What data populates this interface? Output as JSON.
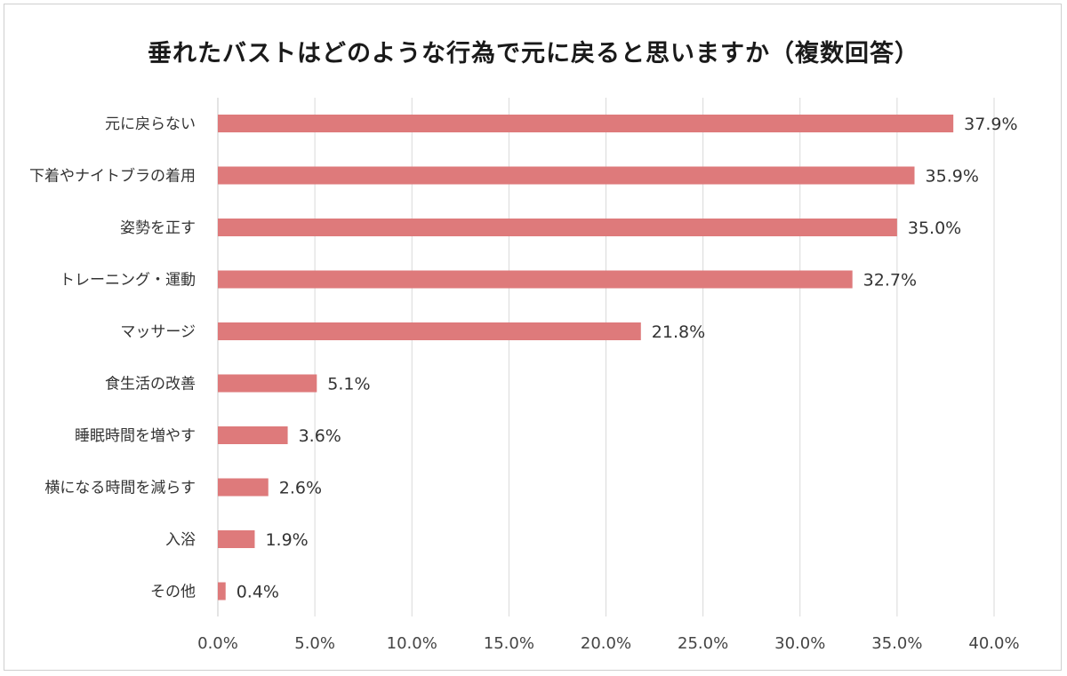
{
  "chart_data": {
    "type": "bar",
    "orientation": "horizontal",
    "title": "垂れたバストはどのような行為で元に戻ると思いますか（複数回答）",
    "categories": [
      "元に戻らない",
      "下着やナイトブラの着用",
      "姿勢を正す",
      "トレーニング・運動",
      "マッサージ",
      "食生活の改善",
      "睡眠時間を増やす",
      "横になる時間を減らす",
      "入浴",
      "その他"
    ],
    "values": [
      37.9,
      35.9,
      35.0,
      32.7,
      21.8,
      5.1,
      3.6,
      2.6,
      1.9,
      0.4
    ],
    "data_labels": [
      "37.9%",
      "35.9%",
      "35.0%",
      "32.7%",
      "21.8%",
      "5.1%",
      "3.6%",
      "2.6%",
      "1.9%",
      "0.4%"
    ],
    "xlim": [
      0,
      40
    ],
    "x_ticks": [
      0,
      5,
      10,
      15,
      20,
      25,
      30,
      35,
      40
    ],
    "x_tick_labels": [
      "0.0%",
      "5.0%",
      "10.0%",
      "15.0%",
      "20.0%",
      "25.0%",
      "30.0%",
      "35.0%",
      "40.0%"
    ],
    "grid": "vertical",
    "bar_color": "#de7a7b",
    "grid_color": "#d9d9d9"
  }
}
